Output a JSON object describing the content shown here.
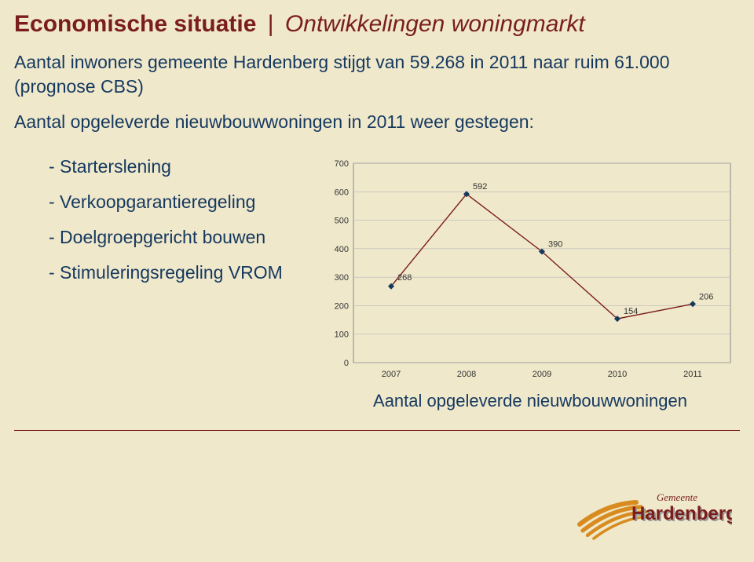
{
  "title": {
    "part1": "Economische situatie",
    "separator": "|",
    "part2": "Ontwikkelingen woningmarkt"
  },
  "subtitle": {
    "line1": "Aantal inwoners gemeente Hardenberg stijgt van 59.268 in 2011 naar ruim 61.000",
    "line2": "(prognose CBS)",
    "line3": "Aantal opgeleverde nieuwbouwwoningen in 2011 weer gestegen:"
  },
  "bullets": [
    "- Starterslening",
    "- Verkoopgarantieregeling",
    "- Doelgroepgericht bouwen",
    "- Stimuleringsregeling VROM"
  ],
  "chart": {
    "type": "line",
    "categories": [
      "2007",
      "2008",
      "2009",
      "2010",
      "2011"
    ],
    "values": [
      268,
      592,
      390,
      154,
      206
    ],
    "ylim": [
      0,
      700
    ],
    "ytick_step": 100,
    "line_color": "#7a1d1d",
    "marker_color": "#15385f",
    "marker_size": 5,
    "line_width": 1.4,
    "grid_color": "#b8b8b8",
    "border_color": "#8a8a8a",
    "background_color": "#efe8cb",
    "label_fontsize": 11,
    "label_color": "#333333",
    "datalabel_color": "#333333",
    "caption": "Aantal opgeleverde nieuwbouwwoningen"
  },
  "logo": {
    "text_top": "Gemeente",
    "text_main": "Hardenberg",
    "swoosh_color": "#d88b1f",
    "text_color": "#7a1d1d",
    "shadow_color": "#9a9a9a"
  },
  "colors": {
    "background": "#efe8cb",
    "accent_red": "#7a1d1d",
    "accent_blue": "#15385f"
  }
}
